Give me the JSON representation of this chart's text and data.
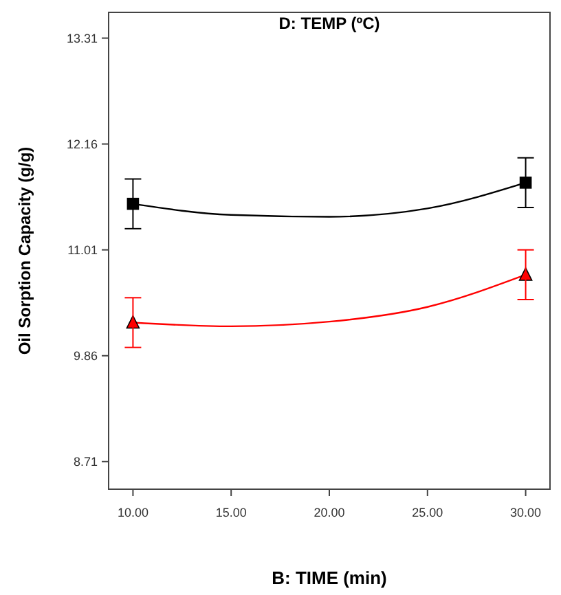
{
  "chart_data": {
    "type": "line",
    "title": "D: TEMP (ºC)",
    "xlabel": "B: TIME (min)",
    "ylabel": "Oil Sorption Capacity (g/g)",
    "xlim": [
      8.76,
      31.24
    ],
    "xticks": [
      {
        "value": 10,
        "label": "10.00"
      },
      {
        "value": 15,
        "label": "15.00"
      },
      {
        "value": 20,
        "label": "20.00"
      },
      {
        "value": 25,
        "label": "25.00"
      },
      {
        "value": 30,
        "label": "30.00"
      }
    ],
    "ylim": [
      8.41,
      13.59
    ],
    "yticks": [
      8.71,
      9.86,
      11.01,
      12.16,
      13.31
    ],
    "grid": false,
    "series": [
      {
        "color": "#000000",
        "marker": "none",
        "x": [
          10,
          15,
          20,
          25,
          30
        ],
        "values": [
          11.51,
          11.39,
          11.37,
          11.46,
          11.74
        ]
      },
      {
        "type": "scatter",
        "color": "#000000",
        "marker": "square",
        "x": [
          10,
          30
        ],
        "values": [
          11.51,
          11.74
        ],
        "errors": [
          0.27,
          0.27
        ]
      },
      {
        "color": "#ff0000",
        "marker": "none",
        "x": [
          10,
          15,
          20,
          25,
          30
        ],
        "values": [
          10.22,
          10.18,
          10.23,
          10.39,
          10.74
        ]
      },
      {
        "type": "scatter",
        "color": "#ff0000",
        "marker": "triangle",
        "x": [
          10,
          30
        ],
        "values": [
          10.22,
          10.74
        ],
        "errors": [
          0.27,
          0.27
        ]
      }
    ]
  }
}
